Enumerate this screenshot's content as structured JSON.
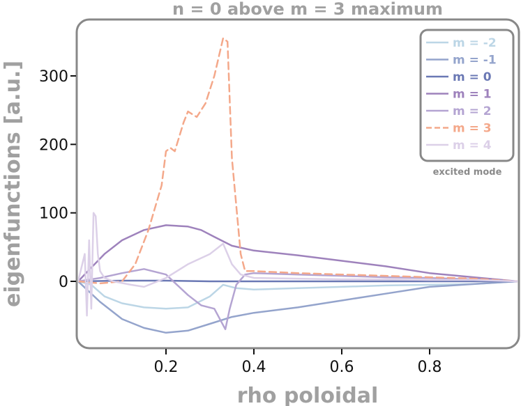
{
  "chart_data": {
    "type": "line",
    "title": "n = 0 above m = 3 maximum",
    "xlabel": "rho poloidal",
    "ylabel": "eigenfunctions [a.u.]",
    "xlim": [
      0.0,
      1.0
    ],
    "ylim": [
      -95,
      360
    ],
    "xticks": [
      0.2,
      0.4,
      0.6,
      0.8
    ],
    "xtick_labels": [
      "0.2",
      "0.4",
      "0.6",
      "0.8"
    ],
    "yticks": [
      0,
      100,
      200,
      300
    ],
    "ytick_labels": [
      "0",
      "100",
      "200",
      "300"
    ],
    "grid": false,
    "legend_position": "top-right",
    "legend_note": "excited mode",
    "series": [
      {
        "name": "m = -2",
        "color": "#bcd6e6",
        "dash": false,
        "x": [
          0.0,
          0.03,
          0.06,
          0.1,
          0.15,
          0.2,
          0.25,
          0.3,
          0.33,
          0.36,
          0.4,
          0.5,
          0.6,
          0.7,
          0.8,
          0.9,
          1.0
        ],
        "y": [
          0,
          -5,
          -22,
          -32,
          -38,
          -40,
          -38,
          -22,
          -5,
          -10,
          -12,
          -10,
          -8,
          -6,
          -5,
          -4,
          0
        ]
      },
      {
        "name": "m = -1",
        "color": "#94a4cc",
        "dash": false,
        "x": [
          0.0,
          0.05,
          0.1,
          0.15,
          0.2,
          0.25,
          0.3,
          0.35,
          0.4,
          0.5,
          0.6,
          0.7,
          0.8,
          0.9,
          1.0
        ],
        "y": [
          0,
          -30,
          -55,
          -68,
          -75,
          -72,
          -62,
          -52,
          -46,
          -38,
          -28,
          -18,
          -8,
          -4,
          0
        ]
      },
      {
        "name": "m = 0",
        "color": "#6a78b4",
        "dash": false,
        "x": [
          0.0,
          0.1,
          0.2,
          0.3,
          0.4,
          0.5,
          0.6,
          0.7,
          0.8,
          0.9,
          1.0
        ],
        "y": [
          0,
          1,
          1,
          0,
          0,
          0,
          0,
          0,
          0,
          0,
          0
        ]
      },
      {
        "name": "m = 1",
        "color": "#9e82bc",
        "dash": false,
        "x": [
          0.0,
          0.03,
          0.06,
          0.1,
          0.15,
          0.2,
          0.25,
          0.28,
          0.31,
          0.35,
          0.4,
          0.5,
          0.6,
          0.7,
          0.8,
          0.9,
          1.0
        ],
        "y": [
          0,
          20,
          40,
          60,
          75,
          82,
          80,
          75,
          65,
          52,
          45,
          38,
          30,
          22,
          12,
          6,
          0
        ]
      },
      {
        "name": "m = 2",
        "color": "#b4a4d2",
        "dash": false,
        "x": [
          0.0,
          0.05,
          0.1,
          0.15,
          0.2,
          0.25,
          0.28,
          0.31,
          0.335,
          0.345,
          0.36,
          0.38,
          0.4,
          0.5,
          0.6,
          0.7,
          0.8,
          0.9,
          1.0
        ],
        "y": [
          0,
          5,
          12,
          18,
          10,
          -20,
          -35,
          -40,
          -70,
          -40,
          -5,
          10,
          12,
          10,
          8,
          6,
          5,
          3,
          0
        ]
      },
      {
        "name": "m = 3",
        "color": "#f4a88a",
        "dash": true,
        "x": [
          0.0,
          0.05,
          0.1,
          0.13,
          0.16,
          0.19,
          0.2,
          0.21,
          0.22,
          0.24,
          0.25,
          0.27,
          0.29,
          0.31,
          0.33,
          0.34,
          0.35,
          0.37,
          0.38,
          0.4,
          0.5,
          0.6,
          0.7,
          0.8,
          0.9,
          1.0
        ],
        "y": [
          0,
          -3,
          0,
          25,
          75,
          140,
          190,
          195,
          190,
          232,
          248,
          240,
          260,
          300,
          355,
          350,
          180,
          40,
          15,
          15,
          12,
          10,
          8,
          6,
          4,
          0
        ]
      },
      {
        "name": "m = 4",
        "color": "#dcd0e8",
        "dash": false,
        "x": [
          0.0,
          0.015,
          0.02,
          0.025,
          0.03,
          0.035,
          0.04,
          0.045,
          0.05,
          0.06,
          0.08,
          0.12,
          0.15,
          0.2,
          0.25,
          0.3,
          0.33,
          0.35,
          0.37,
          0.4,
          0.5,
          0.6,
          0.7,
          0.8,
          0.9,
          1.0
        ],
        "y": [
          0,
          40,
          -50,
          60,
          -40,
          100,
          95,
          40,
          15,
          5,
          0,
          -5,
          -8,
          5,
          25,
          40,
          55,
          25,
          10,
          5,
          4,
          3,
          3,
          2,
          2,
          0
        ]
      }
    ]
  }
}
